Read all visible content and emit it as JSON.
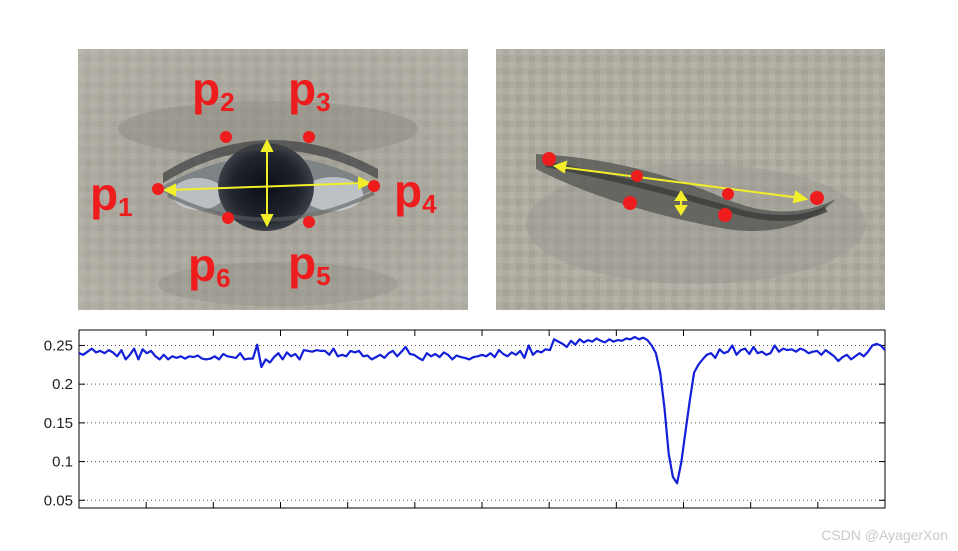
{
  "images": {
    "open_eye": {
      "landmarks": [
        {
          "id": "p1",
          "base": "p",
          "sub": "1"
        },
        {
          "id": "p2",
          "base": "p",
          "sub": "2"
        },
        {
          "id": "p3",
          "base": "p",
          "sub": "3"
        },
        {
          "id": "p4",
          "base": "p",
          "sub": "4"
        },
        {
          "id": "p5",
          "base": "p",
          "sub": "5"
        },
        {
          "id": "p6",
          "base": "p",
          "sub": "6"
        }
      ]
    }
  },
  "colors": {
    "landmark": "#ee1c1c",
    "axis_lines": "#f2ee2a",
    "series": "#1420d8"
  },
  "chart_data": {
    "type": "line",
    "title": "",
    "xlabel": "",
    "ylabel": "",
    "ylim": [
      0.04,
      0.27
    ],
    "yticks": [
      "0.05",
      "0.1",
      "0.15",
      "0.2",
      "0.25"
    ],
    "yticks_values": [
      0.05,
      0.1,
      0.15,
      0.2,
      0.25
    ],
    "xtick_count": 12,
    "grid": "horizontal dotted",
    "series": [
      {
        "color": "#1420d8",
        "values": [
          0.24,
          0.238,
          0.242,
          0.246,
          0.241,
          0.243,
          0.24,
          0.244,
          0.241,
          0.236,
          0.244,
          0.232,
          0.238,
          0.246,
          0.232,
          0.245,
          0.24,
          0.243,
          0.236,
          0.232,
          0.238,
          0.232,
          0.236,
          0.234,
          0.236,
          0.233,
          0.236,
          0.235,
          0.237,
          0.233,
          0.232,
          0.233,
          0.236,
          0.232,
          0.239,
          0.236,
          0.235,
          0.234,
          0.24,
          0.232,
          0.233,
          0.233,
          0.251,
          0.222,
          0.232,
          0.228,
          0.235,
          0.24,
          0.232,
          0.241,
          0.236,
          0.239,
          0.232,
          0.244,
          0.243,
          0.242,
          0.244,
          0.243,
          0.243,
          0.238,
          0.246,
          0.236,
          0.238,
          0.236,
          0.243,
          0.241,
          0.243,
          0.236,
          0.237,
          0.232,
          0.235,
          0.238,
          0.234,
          0.24,
          0.243,
          0.236,
          0.242,
          0.248,
          0.239,
          0.238,
          0.234,
          0.231,
          0.24,
          0.236,
          0.239,
          0.235,
          0.241,
          0.238,
          0.232,
          0.237,
          0.235,
          0.234,
          0.232,
          0.235,
          0.236,
          0.238,
          0.236,
          0.24,
          0.235,
          0.244,
          0.239,
          0.236,
          0.241,
          0.238,
          0.243,
          0.234,
          0.25,
          0.238,
          0.243,
          0.241,
          0.245,
          0.244,
          0.258,
          0.255,
          0.252,
          0.248,
          0.256,
          0.251,
          0.258,
          0.254,
          0.257,
          0.255,
          0.259,
          0.256,
          0.254,
          0.258,
          0.255,
          0.257,
          0.256,
          0.259,
          0.258,
          0.261,
          0.258,
          0.26,
          0.257,
          0.25,
          0.24,
          0.215,
          0.17,
          0.11,
          0.08,
          0.072,
          0.1,
          0.14,
          0.18,
          0.215,
          0.225,
          0.232,
          0.238,
          0.24,
          0.234,
          0.245,
          0.24,
          0.242,
          0.25,
          0.238,
          0.244,
          0.246,
          0.239,
          0.248,
          0.24,
          0.242,
          0.238,
          0.24,
          0.25,
          0.242,
          0.246,
          0.244,
          0.245,
          0.242,
          0.246,
          0.244,
          0.24,
          0.242,
          0.243,
          0.238,
          0.244,
          0.24,
          0.236,
          0.23,
          0.235,
          0.238,
          0.232,
          0.236,
          0.24,
          0.236,
          0.242,
          0.25,
          0.252,
          0.25,
          0.244
        ]
      }
    ]
  },
  "watermark": {
    "text": "CSDN @AyagerXon"
  }
}
